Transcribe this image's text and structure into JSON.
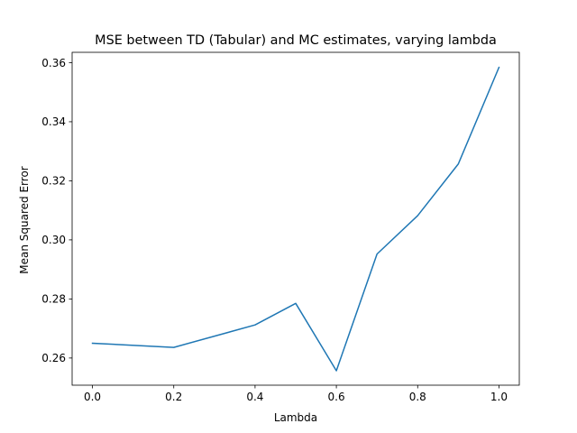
{
  "chart_data": {
    "type": "line",
    "title": "MSE between TD (Tabular) and MC estimates, varying lambda",
    "xlabel": "Lambda",
    "ylabel": "Mean Squared Error",
    "xlim": [
      -0.05,
      1.05
    ],
    "ylim": [
      0.2508,
      0.3635
    ],
    "xticks": [
      0.0,
      0.2,
      0.4,
      0.6,
      0.8,
      1.0
    ],
    "xtick_labels": [
      "0.0",
      "0.2",
      "0.4",
      "0.6",
      "0.8",
      "1.0"
    ],
    "yticks": [
      0.26,
      0.28,
      0.3,
      0.32,
      0.34,
      0.36
    ],
    "ytick_labels": [
      "0.26",
      "0.28",
      "0.30",
      "0.32",
      "0.34",
      "0.36"
    ],
    "grid": false,
    "series": [
      {
        "color": "#1f77b4",
        "x": [
          0.0,
          0.2,
          0.4,
          0.5,
          0.6,
          0.7,
          0.8,
          0.9,
          1.0
        ],
        "y": [
          0.265,
          0.2636,
          0.2712,
          0.2785,
          0.2557,
          0.2952,
          0.3082,
          0.3257,
          0.3584
        ]
      }
    ]
  }
}
